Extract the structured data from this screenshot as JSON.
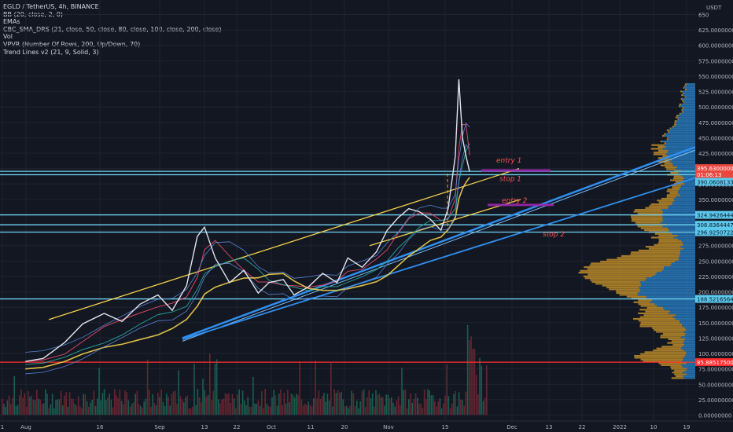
{
  "header": {
    "indicators": [
      "EGLD / TetherUS, 4h, BINANCE",
      "BB (20, close, 2, 0)",
      "EMAs",
      "CBC_SMA_DRS (21, close, 50, close, 80, close, 100, close, 200, close)",
      "Vol",
      "VPVR (Number Of Rows, 200, Up/Down, 70)",
      "Trend Lines v2 (21, 9, Solid, 3)"
    ]
  },
  "colors": {
    "background": "#131722",
    "grid": "#1f2331",
    "text": "#b2b5be",
    "cyan_line": "#6fd3f2",
    "red_line": "#ff2e2e",
    "yellow": "#f2d04b",
    "blue_trend": "#2f8ff0",
    "annotation": "#f25454",
    "purple_box": "#9c27b0",
    "vpvr_up": "#2b8ad6",
    "vpvr_down": "#c9932b"
  },
  "chart_data": {
    "type": "line",
    "symbol": "EGLD / TetherUS",
    "timeframe": "4h",
    "exchange": "BINANCE",
    "y_unit": "USDT",
    "ylim": [
      0,
      650
    ],
    "y_ticks": [
      "650.00000000",
      "625.00000000",
      "600.00000000",
      "575.00000000",
      "550.00000000",
      "525.00000000",
      "500.00000000",
      "475.00000000",
      "450.00000000",
      "425.00000000",
      "400.00000000",
      "375.00000000",
      "350.00000000",
      "325.00000000",
      "300.00000000",
      "275.00000000",
      "250.00000000",
      "225.00000000",
      "200.00000000",
      "175.00000000",
      "150.00000000",
      "125.00000000",
      "100.00000000",
      "75.00000000",
      "50.00000000",
      "25.00000000",
      "0.00000000"
    ],
    "x_ticks": [
      "1",
      "Aug",
      "16",
      "Sep",
      "13",
      "22",
      "Oct",
      "11",
      "20",
      "Nov",
      "15",
      "Dec",
      "13",
      "22",
      "2022",
      "10",
      "19"
    ],
    "grid": true,
    "price_series": {
      "name": "EGLD / TetherUS",
      "x": [
        "2021-07-25",
        "2021-07-30",
        "2021-08-05",
        "2021-08-10",
        "2021-08-16",
        "2021-08-21",
        "2021-08-26",
        "2021-08-31",
        "2021-09-04",
        "2021-09-08",
        "2021-09-11",
        "2021-09-13",
        "2021-09-16",
        "2021-09-20",
        "2021-09-24",
        "2021-09-28",
        "2021-10-01",
        "2021-10-05",
        "2021-10-08",
        "2021-10-12",
        "2021-10-16",
        "2021-10-20",
        "2021-10-23",
        "2021-10-27",
        "2021-10-31",
        "2021-11-03",
        "2021-11-06",
        "2021-11-09",
        "2021-11-12",
        "2021-11-15",
        "2021-11-18",
        "2021-11-20",
        "2021-11-22",
        "2021-11-23",
        "2021-11-24",
        "2021-11-25",
        "2021-11-26"
      ],
      "y": [
        87,
        92,
        118,
        148,
        165,
        152,
        180,
        195,
        170,
        210,
        290,
        305,
        255,
        215,
        235,
        198,
        215,
        220,
        195,
        208,
        230,
        215,
        255,
        240,
        265,
        300,
        320,
        335,
        330,
        318,
        300,
        335,
        420,
        545,
        450,
        420,
        395
      ]
    },
    "horizontal_levels": [
      {
        "value": 395.63,
        "label": "395.63000000",
        "sub": "01:06:13"
      },
      {
        "value": 390.06081338,
        "label": "390.06081338"
      },
      {
        "value": 324.94264441,
        "label": "324.94264441"
      },
      {
        "value": 308.83644473,
        "label": "308.83644473"
      },
      {
        "value": 296.92507222,
        "label": "296.92507222"
      },
      {
        "value": 188.52165649,
        "label": "188.52165649"
      },
      {
        "value": 85.885175,
        "label": "85.88517500"
      }
    ],
    "annotations": [
      "entry 1",
      "stop 1",
      "entry 2",
      "stop 2"
    ]
  }
}
